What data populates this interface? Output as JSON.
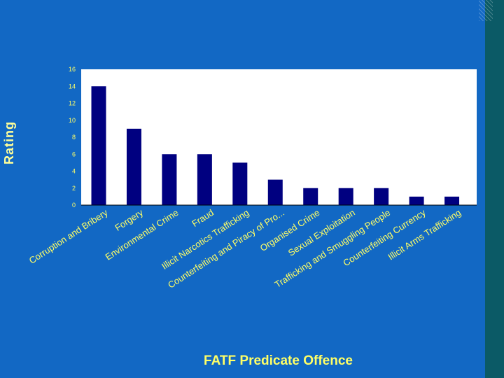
{
  "chart_data": {
    "type": "bar",
    "categories": [
      "Corruption and Bribery",
      "Forgery",
      "Environmental Crime",
      "Fraud",
      "Illicit Narcotics Trafficking",
      "Counterfeiting and Piracy of Pro...",
      "Organised Crime",
      "Sexual Exploitation",
      "Trafficking and Smuggling People",
      "Counterfeiting Currency",
      "Illicit Arms Trafficking"
    ],
    "values": [
      14,
      9,
      6,
      6,
      5,
      3,
      2,
      2,
      2,
      1,
      1
    ],
    "title": "",
    "xlabel": "FATF Predicate Offence",
    "ylabel": "Rating",
    "ylim": [
      0,
      16
    ],
    "yticks": [
      0,
      2,
      4,
      6,
      8,
      10,
      12,
      14,
      16
    ],
    "grid": false,
    "legend": "none",
    "colors": {
      "background": "#1268c4",
      "plot_area": "#ffffff",
      "bar": "#000080",
      "tick_labels": "#ffff66",
      "category_labels": "#ffff66",
      "ylabel": "#ffff99",
      "xlabel": "#ffff66"
    }
  }
}
